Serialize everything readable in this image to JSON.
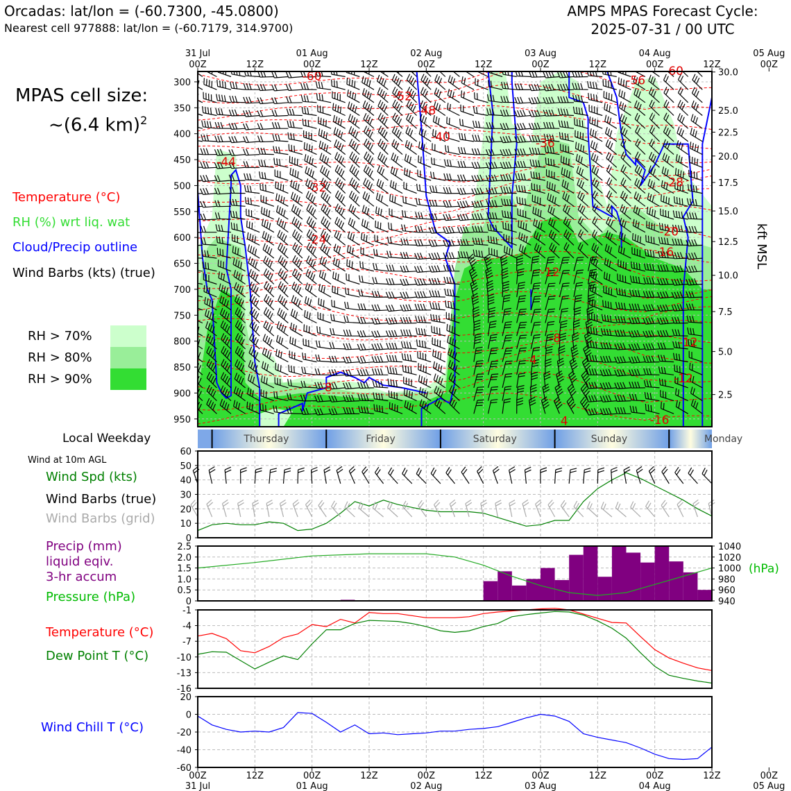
{
  "header": {
    "title_left": "Orcadas: lat/lon = (-60.7300, -45.0800)",
    "subtitle_left": "Nearest cell 977888: lat/lon = (-60.7179, 314.9700)",
    "title_right_line1": "AMPS MPAS Forecast Cycle:",
    "title_right_line2": "2025-07-31 / 00 UTC"
  },
  "legend": {
    "cell_size_line1": "MPAS cell size:",
    "cell_size_line2": "~(6.4 km)",
    "cell_size_sup": "2",
    "items": [
      {
        "label": "Temperature (°C)",
        "color": "#ff0000"
      },
      {
        "label": "RH (%) wrt liq. wat",
        "color": "#33dd33"
      },
      {
        "label": "Cloud/Precip outline",
        "color": "#0000ff"
      },
      {
        "label": "Wind Barbs (kts) (true)",
        "color": "#000000"
      }
    ],
    "rh_levels": [
      {
        "label": "RH > 70%",
        "color": "#ccffcc"
      },
      {
        "label": "RH > 80%",
        "color": "#99ee99"
      },
      {
        "label": "RH > 90%",
        "color": "#33dd33"
      }
    ]
  },
  "time_axis": {
    "top_dates": [
      "31 Jul",
      "01 Aug",
      "02 Aug",
      "03 Aug",
      "04 Aug",
      "05 Aug"
    ],
    "hour_labels": [
      "00Z",
      "12Z",
      "00Z",
      "12Z",
      "00Z",
      "12Z",
      "00Z",
      "12Z",
      "00Z",
      "12Z",
      "00Z"
    ],
    "bottom_dates": [
      "31 Jul",
      "01 Aug",
      "02 Aug",
      "03 Aug",
      "04 Aug",
      "05 Aug"
    ]
  },
  "weekday_strip": {
    "label": "Local Weekday",
    "days": [
      "Thursday",
      "Friday",
      "Saturday",
      "Sunday",
      "Monday"
    ]
  },
  "panels": {
    "wind": {
      "note": "Wind at 10m AGL",
      "labels": [
        {
          "text": "Wind Spd (kts)",
          "color": "#008000"
        },
        {
          "text": "Wind Barbs (true)",
          "color": "#000000"
        },
        {
          "text": "Wind Barbs (grid)",
          "color": "#aaaaaa"
        }
      ]
    },
    "precip": {
      "labels": [
        {
          "text": "Precip (mm)",
          "color": "#800080"
        },
        {
          "text": "liquid eqiv.",
          "color": "#800080"
        },
        {
          "text": "3-hr accum",
          "color": "#800080"
        },
        {
          "text": "Pressure (hPa)",
          "color": "#00bb00"
        }
      ],
      "right_unit": "(hPa)"
    },
    "temp": {
      "labels": [
        {
          "text": "Temperature (°C)",
          "color": "#ff0000"
        },
        {
          "text": "Dew Point T (°C)",
          "color": "#008000"
        }
      ]
    },
    "windchill": {
      "labels": [
        {
          "text": "Wind Chill T (°C)",
          "color": "#0000ff"
        }
      ]
    }
  },
  "chart_data": [
    {
      "type": "heatmap",
      "name": "time-height cross section",
      "x_hours": [
        0,
        108
      ],
      "y_pressure_ticks": [
        300,
        350,
        400,
        450,
        500,
        550,
        600,
        650,
        700,
        750,
        800,
        850,
        900,
        950
      ],
      "y_ylim_hPa": [
        280,
        965
      ],
      "right_axis_label": "kft MSL",
      "right_ticks": [
        {
          "label": "30.0",
          "p": 281
        },
        {
          "label": "25.0",
          "p": 355
        },
        {
          "label": "22.5",
          "p": 397
        },
        {
          "label": "20.0",
          "p": 443
        },
        {
          "label": "17.5",
          "p": 494
        },
        {
          "label": "15.0",
          "p": 549
        },
        {
          "label": "12.5",
          "p": 608
        },
        {
          "label": "10.0",
          "p": 673
        },
        {
          "label": "7.5",
          "p": 743
        },
        {
          "label": "5.0",
          "p": 820
        },
        {
          "label": "2.5",
          "p": 903
        }
      ],
      "temperature_contour_labels": [
        {
          "text": "-60",
          "h": 24,
          "p": 290
        },
        {
          "text": "-56",
          "h": 92,
          "p": 298
        },
        {
          "text": "-60",
          "h": 100,
          "p": 280
        },
        {
          "text": "-52",
          "h": 43,
          "p": 329
        },
        {
          "text": "-48",
          "h": 48,
          "p": 356
        },
        {
          "text": "-40",
          "h": 51,
          "p": 407
        },
        {
          "text": "-36",
          "h": 73,
          "p": 419
        },
        {
          "text": "-44",
          "h": 6,
          "p": 455
        },
        {
          "text": "-32",
          "h": 25,
          "p": 505
        },
        {
          "text": "-28",
          "h": 100,
          "p": 495
        },
        {
          "text": "-24",
          "h": 25,
          "p": 605
        },
        {
          "text": "-20",
          "h": 99,
          "p": 590
        },
        {
          "text": "-16",
          "h": 98,
          "p": 629
        },
        {
          "text": "-12",
          "h": 74,
          "p": 668
        },
        {
          "text": "-8",
          "h": 75,
          "p": 795
        },
        {
          "text": "-12",
          "h": 103,
          "p": 803
        },
        {
          "text": "-4",
          "h": 70,
          "p": 837
        },
        {
          "text": "-12",
          "h": 102,
          "p": 873
        },
        {
          "text": "-8",
          "h": 27,
          "p": 890
        },
        {
          "text": "-16",
          "h": 97,
          "p": 953
        },
        {
          "text": "4",
          "h": 77,
          "p": 955
        }
      ]
    },
    {
      "type": "line",
      "name": "10m wind speed",
      "ylim": [
        0,
        60
      ],
      "yticks": [
        0,
        10,
        20,
        30,
        40,
        50,
        60
      ],
      "x_hours": [
        0,
        3,
        6,
        9,
        12,
        15,
        18,
        21,
        24,
        27,
        30,
        33,
        36,
        39,
        42,
        45,
        48,
        51,
        54,
        57,
        60,
        63,
        66,
        69,
        72,
        75,
        78,
        81,
        84,
        87,
        90,
        93,
        96,
        99,
        102,
        105,
        108
      ],
      "series": [
        {
          "color": "#008000",
          "values": [
            5,
            9,
            10,
            9,
            9,
            11,
            10,
            5,
            6,
            10,
            17,
            25,
            22,
            26,
            23,
            21,
            19,
            18,
            18,
            18,
            17,
            14,
            11,
            8,
            9,
            12,
            12,
            25,
            34,
            40,
            45,
            41,
            36,
            31,
            26,
            20,
            15
          ]
        }
      ]
    },
    {
      "type": "bar",
      "name": "3-hr precip and pressure",
      "ylim": [
        0,
        2.5
      ],
      "yticks": [
        0,
        0.5,
        1.0,
        1.5,
        2.0,
        2.5
      ],
      "y2lim": [
        940,
        1040
      ],
      "y2ticks": [
        940,
        960,
        980,
        1000,
        1020,
        1040
      ],
      "bar_hours_start": [
        27,
        30,
        33,
        36,
        39,
        42,
        45,
        48,
        51,
        54,
        57,
        60,
        63,
        66,
        69,
        72,
        75,
        78,
        81,
        84,
        87,
        90,
        93,
        96,
        99,
        102,
        105
      ],
      "values": [
        0.01,
        0.05,
        0.03,
        0,
        0,
        0,
        0,
        0,
        0,
        0,
        0,
        0.9,
        1.35,
        0.7,
        1.0,
        1.5,
        0.95,
        2.1,
        2.5,
        1.1,
        2.5,
        2.2,
        1.75,
        2.5,
        1.8,
        1.3,
        0.5
      ],
      "pressure_x_hours": [
        0,
        12,
        24,
        36,
        48,
        54,
        60,
        66,
        72,
        78,
        84,
        90,
        96,
        102,
        108
      ],
      "pressure_values": [
        1000,
        1010,
        1022,
        1026,
        1026,
        1020,
        1005,
        985,
        968,
        955,
        950,
        955,
        970,
        985,
        1000
      ]
    },
    {
      "type": "line",
      "name": "temperature and dew point",
      "ylim": [
        -16,
        -1
      ],
      "yticks": [
        -16,
        -13,
        -10,
        -7,
        -4,
        -1
      ],
      "x_hours": [
        0,
        3,
        6,
        9,
        12,
        15,
        18,
        21,
        24,
        27,
        30,
        33,
        36,
        39,
        42,
        45,
        48,
        51,
        54,
        57,
        60,
        63,
        66,
        69,
        72,
        75,
        78,
        81,
        84,
        87,
        90,
        93,
        96,
        99,
        102,
        105,
        108
      ],
      "series": [
        {
          "name": "Temperature",
          "color": "#ff0000",
          "values": [
            -6.0,
            -5.5,
            -6.5,
            -8.8,
            -9.2,
            -8.0,
            -6.3,
            -5.6,
            -3.8,
            -4.2,
            -2.8,
            -3.5,
            -1.5,
            -1.7,
            -1.7,
            -2.1,
            -2.5,
            -2.5,
            -2.5,
            -2.3,
            -1.7,
            -1.4,
            -1.2,
            -1.0,
            -0.8,
            -0.7,
            -1.0,
            -1.8,
            -2.6,
            -3.4,
            -3.5,
            -6.1,
            -8.6,
            -10.2,
            -11.2,
            -12.1,
            -12.6
          ]
        },
        {
          "name": "Dew Point",
          "color": "#008000",
          "values": [
            -9.5,
            -9.0,
            -9.1,
            -10.7,
            -12.3,
            -11.0,
            -9.8,
            -10.5,
            -7.5,
            -4.8,
            -4.8,
            -3.6,
            -3.0,
            -3.1,
            -3.2,
            -3.6,
            -4.2,
            -5.0,
            -5.3,
            -5.0,
            -4.2,
            -3.6,
            -2.3,
            -1.9,
            -1.6,
            -1.3,
            -1.4,
            -2.0,
            -3.1,
            -4.5,
            -6.4,
            -9.2,
            -11.8,
            -13.5,
            -14.1,
            -14.6,
            -15.0
          ]
        }
      ]
    },
    {
      "type": "line",
      "name": "wind chill",
      "ylim": [
        -60,
        20
      ],
      "yticks": [
        -60,
        -40,
        -20,
        0,
        20
      ],
      "x_hours": [
        0,
        3,
        6,
        9,
        12,
        15,
        18,
        21,
        24,
        27,
        30,
        33,
        36,
        39,
        42,
        45,
        48,
        51,
        54,
        57,
        60,
        63,
        66,
        69,
        72,
        75,
        78,
        81,
        84,
        87,
        90,
        93,
        96,
        99,
        102,
        105,
        108
      ],
      "series": [
        {
          "color": "#0000ff",
          "values": [
            -2,
            -12,
            -17,
            -20,
            -19,
            -20,
            -15,
            2,
            1,
            -9,
            -20,
            -12,
            -22,
            -21,
            -23,
            -22,
            -21,
            -19,
            -19,
            -17,
            -16,
            -14,
            -9,
            -4,
            0,
            -2,
            -8,
            -22,
            -26,
            -29,
            -32,
            -38,
            -45,
            -50,
            -51,
            -50,
            -37
          ]
        }
      ]
    }
  ]
}
